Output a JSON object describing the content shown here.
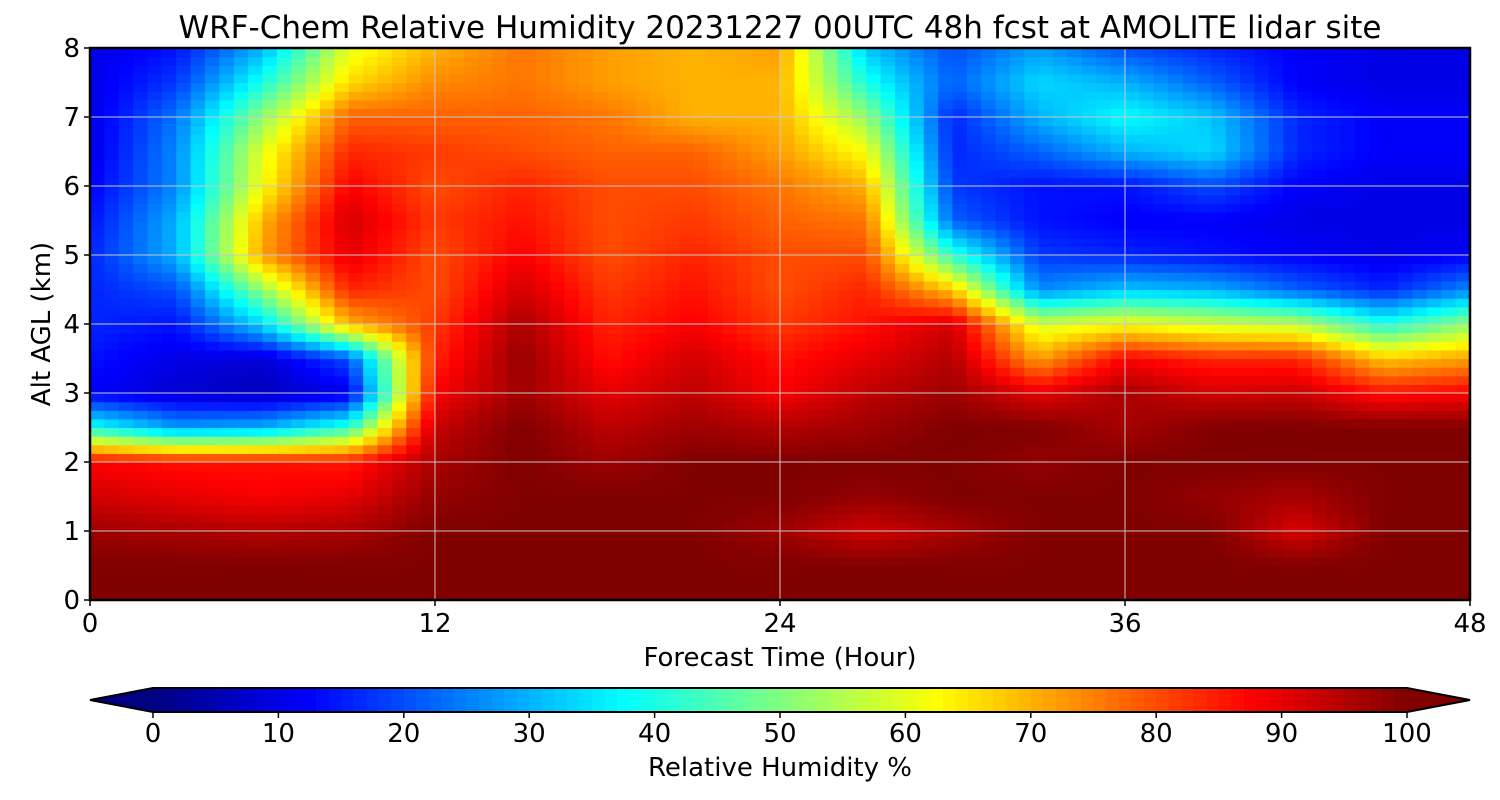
{
  "chart_data": {
    "type": "heatmap",
    "title": "WRF-Chem Relative Humidity 20231227 00UTC 48h fcst at AMOLITE lidar site",
    "xlabel": "Forecast Time (Hour)",
    "ylabel": "Alt AGL (km)",
    "xlim": [
      0,
      48
    ],
    "ylim": [
      0,
      8
    ],
    "xticks": [
      "0",
      "12",
      "24",
      "36",
      "48"
    ],
    "yticks": [
      "0",
      "1",
      "2",
      "3",
      "4",
      "5",
      "6",
      "7",
      "8"
    ],
    "grid": true,
    "colorbar": {
      "label": "Relative Humidity %",
      "range": [
        0,
        100
      ],
      "ticks": [
        "0",
        "10",
        "20",
        "30",
        "40",
        "50",
        "60",
        "70",
        "80",
        "90",
        "100"
      ],
      "colormap": "jet",
      "extend": "both",
      "placement": "bottom"
    },
    "x": [
      0,
      3,
      6,
      9,
      12,
      15,
      18,
      21,
      24,
      27,
      30,
      33,
      36,
      39,
      42,
      45,
      48
    ],
    "y": [
      0,
      0.5,
      1,
      1.5,
      2,
      2.5,
      3,
      3.5,
      4,
      4.5,
      5,
      5.5,
      6,
      6.5,
      7,
      7.5,
      8
    ],
    "values": [
      [
        100,
        100,
        100,
        100,
        100,
        100,
        100,
        100,
        100,
        100,
        100,
        100,
        100,
        100,
        100,
        100,
        100
      ],
      [
        100,
        100,
        100,
        100,
        100,
        100,
        100,
        100,
        100,
        100,
        100,
        100,
        100,
        100,
        100,
        100,
        100
      ],
      [
        97,
        96,
        95,
        96,
        100,
        100,
        100,
        100,
        97,
        92,
        96,
        100,
        100,
        100,
        91,
        100,
        100
      ],
      [
        92,
        90,
        88,
        90,
        98,
        100,
        100,
        100,
        100,
        98,
        100,
        100,
        100,
        98,
        96,
        100,
        100
      ],
      [
        88,
        86,
        86,
        85,
        96,
        100,
        97,
        100,
        100,
        100,
        100,
        98,
        100,
        100,
        100,
        100,
        100
      ],
      [
        40,
        28,
        30,
        42,
        93,
        100,
        94,
        97,
        95,
        97,
        100,
        100,
        96,
        100,
        100,
        100,
        100
      ],
      [
        12,
        8,
        6,
        10,
        88,
        97,
        90,
        94,
        88,
        94,
        97,
        90,
        96,
        92,
        93,
        86,
        88
      ],
      [
        14,
        10,
        8,
        20,
        84,
        98,
        86,
        92,
        86,
        90,
        95,
        72,
        88,
        84,
        84,
        68,
        72
      ],
      [
        16,
        14,
        34,
        70,
        82,
        96,
        84,
        88,
        82,
        86,
        92,
        58,
        62,
        58,
        56,
        40,
        52
      ],
      [
        16,
        20,
        52,
        84,
        80,
        92,
        82,
        86,
        80,
        84,
        68,
        26,
        32,
        30,
        22,
        16,
        26
      ],
      [
        16,
        30,
        72,
        90,
        80,
        88,
        80,
        84,
        80,
        80,
        42,
        18,
        16,
        14,
        12,
        10,
        12
      ],
      [
        14,
        30,
        70,
        92,
        82,
        86,
        80,
        82,
        78,
        76,
        22,
        14,
        12,
        12,
        10,
        10,
        10
      ],
      [
        12,
        26,
        62,
        88,
        80,
        84,
        80,
        80,
        76,
        70,
        18,
        14,
        14,
        20,
        12,
        10,
        10
      ],
      [
        10,
        26,
        60,
        84,
        82,
        80,
        78,
        78,
        72,
        62,
        16,
        22,
        30,
        34,
        16,
        12,
        12
      ],
      [
        10,
        24,
        52,
        78,
        78,
        78,
        76,
        70,
        70,
        52,
        16,
        30,
        38,
        32,
        16,
        12,
        12
      ],
      [
        10,
        18,
        40,
        66,
        74,
        76,
        72,
        70,
        70,
        40,
        22,
        34,
        30,
        22,
        12,
        10,
        10
      ],
      [
        10,
        14,
        30,
        60,
        70,
        76,
        72,
        70,
        72,
        32,
        20,
        28,
        20,
        16,
        12,
        10,
        10
      ]
    ]
  }
}
